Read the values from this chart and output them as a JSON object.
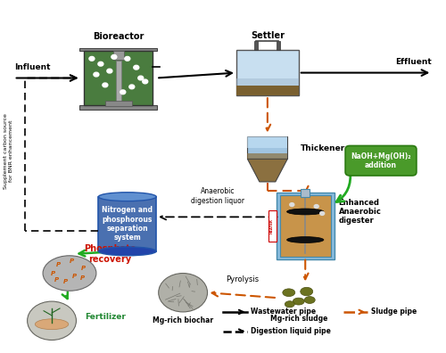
{
  "background_color": "#ffffff",
  "bioreactor_label": "Bioreactor",
  "settler_label": "Settler",
  "thickener_label": "Thickener",
  "naoh_label": "NaOH+Mg(OH)₂\naddition",
  "anaerobic_digester_label": "Enhanced\nAnaerobic\ndigester",
  "nitrogen_system_label": "Nitrogen and\nphosphorous\nseparation\nsystem",
  "anaerobic_liquor_label": "Anaerobic\ndigestion liquor",
  "phosphate_label": "Phosphate\nrecovery",
  "fertilizer_label": "Fertilizer",
  "mg_biochar_label": "Mg-rich biochar",
  "pyrolysis_label": "Pyrolysis",
  "mg_sludge_label": "Mg-rich sludge",
  "influent_label": "Influent",
  "effluent_label": "Effluent",
  "supplement_label": "Supplement carbon source\nfor BNR enhancement",
  "legend_wastewater": "Wastewater pipe",
  "legend_sludge": "Sludge pipe",
  "legend_digestion": "Digestion liquid pipe",
  "bioreactor_color": "#4a7c3f",
  "settler_water_color": "#c8dff0",
  "settler_sludge_color": "#7a6030",
  "thickener_water_color": "#a0c4e0",
  "thickener_sludge_color": "#8b7040",
  "digester_color": "#c8944a",
  "naoh_box_color": "#4a9a2a",
  "nitrogen_cylinder_color": "#4a70b0",
  "nitrogen_cylinder_top": "#6090d0",
  "phosphate_color": "#cc1100",
  "fertilizer_color": "#228833",
  "sludge_blob_color": "#6b7220",
  "arrow_green": "#22aa22",
  "arrow_orange": "#cc5500",
  "arrow_black": "#111111",
  "heater_color": "#cc0000"
}
